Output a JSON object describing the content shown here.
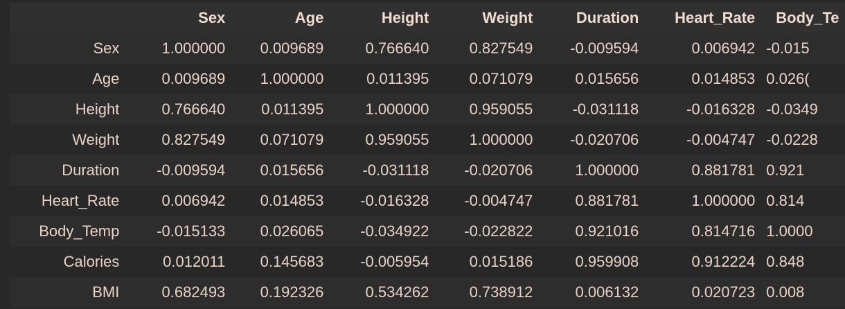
{
  "table": {
    "columns": [
      "",
      "Sex",
      "Age",
      "Height",
      "Weight",
      "Duration",
      "Heart_Rate",
      "Body_Te"
    ],
    "rows": [
      {
        "label": "Sex",
        "values": [
          "1.000000",
          "0.009689",
          "0.766640",
          "0.827549",
          "-0.009594",
          "0.006942",
          "-0.015"
        ]
      },
      {
        "label": "Age",
        "values": [
          "0.009689",
          "1.000000",
          "0.011395",
          "0.071079",
          "0.015656",
          "0.014853",
          "0.026("
        ]
      },
      {
        "label": "Height",
        "values": [
          "0.766640",
          "0.011395",
          "1.000000",
          "0.959055",
          "-0.031118",
          "-0.016328",
          "-0.0349"
        ]
      },
      {
        "label": "Weight",
        "values": [
          "0.827549",
          "0.071079",
          "0.959055",
          "1.000000",
          "-0.020706",
          "-0.004747",
          "-0.0228"
        ]
      },
      {
        "label": "Duration",
        "values": [
          "-0.009594",
          "0.015656",
          "-0.031118",
          "-0.020706",
          "1.000000",
          "0.881781",
          "0.921"
        ]
      },
      {
        "label": "Heart_Rate",
        "values": [
          "0.006942",
          "0.014853",
          "-0.016328",
          "-0.004747",
          "0.881781",
          "1.000000",
          "0.814"
        ]
      },
      {
        "label": "Body_Temp",
        "values": [
          "-0.015133",
          "0.026065",
          "-0.034922",
          "-0.022822",
          "0.921016",
          "0.814716",
          "1.0000"
        ]
      },
      {
        "label": "Calories",
        "values": [
          "0.012011",
          "0.145683",
          "-0.005954",
          "0.015186",
          "0.959908",
          "0.912224",
          "0.848"
        ]
      },
      {
        "label": "BMI",
        "values": [
          "0.682493",
          "0.192326",
          "0.534262",
          "0.738912",
          "0.006132",
          "0.020723",
          "0.008"
        ]
      }
    ]
  }
}
